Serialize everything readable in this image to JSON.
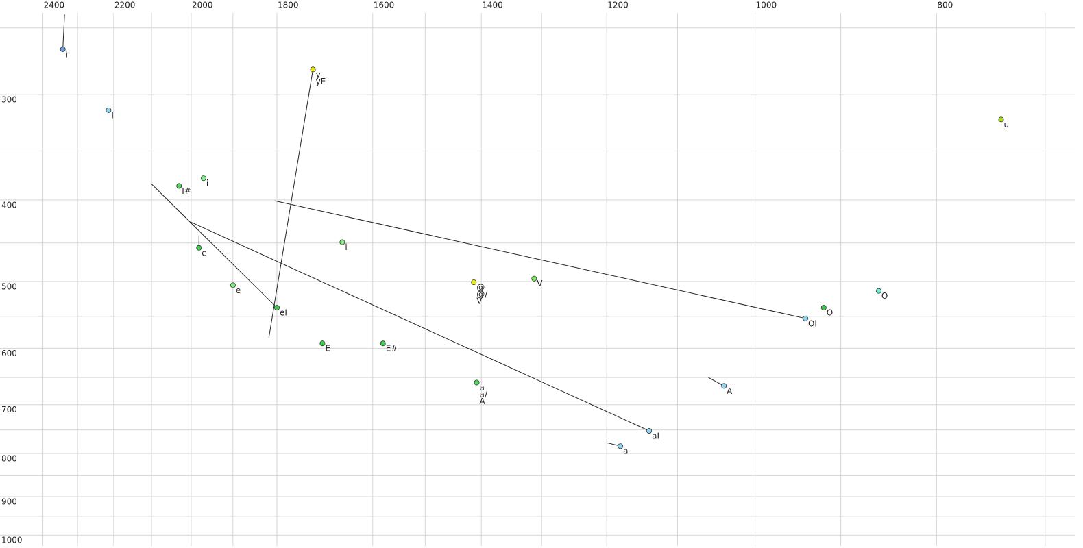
{
  "chart_data": {
    "type": "scatter",
    "log_x": true,
    "log_y": true,
    "x_reversed": true,
    "grid": true,
    "xlim": [
      2530,
      675
    ],
    "ylim": [
      240,
      1030
    ],
    "xticks": [
      2400,
      2200,
      2000,
      1800,
      1600,
      1400,
      1200,
      1000,
      800
    ],
    "xminor": [
      2300,
      2100,
      1900,
      1500,
      1300,
      1100,
      900,
      700
    ],
    "yticks": [
      300,
      400,
      500,
      600,
      700,
      800,
      900,
      1000
    ],
    "yminor": [
      250,
      350,
      450,
      550,
      650,
      750,
      850,
      950
    ],
    "points": [
      {
        "x": 2342,
        "y": 265,
        "color": "#6f9fe6",
        "labels": [
          "i"
        ],
        "label_color": "#222",
        "from": [
          2337,
          241
        ]
      },
      {
        "x": 2214,
        "y": 313,
        "color": "#8fd3f3",
        "labels": [
          "I"
        ],
        "label_color": "#222"
      },
      {
        "x": 1722,
        "y": 280,
        "color": "#eeee10",
        "labels": [
          "y",
          "yE"
        ],
        "label_color": "#222",
        "from": [
          1818,
          583
        ]
      },
      {
        "x": 739,
        "y": 321,
        "color": "#a6e020",
        "labels": [
          "u"
        ],
        "label_color": "#222"
      },
      {
        "x": 2030,
        "y": 385,
        "color": "#50d860",
        "labels": [
          "I#"
        ],
        "label_color": "#222"
      },
      {
        "x": 1970,
        "y": 377,
        "color": "#80ee90",
        "labels": [
          "i"
        ],
        "label_color": "#8a9a8a"
      },
      {
        "x": 1981,
        "y": 456,
        "color": "#40cc50",
        "labels": [
          "e"
        ],
        "label_color": "#222",
        "from": [
          1981,
          441
        ]
      },
      {
        "x": 1900,
        "y": 505,
        "color": "#80ee80",
        "labels": [
          "e"
        ],
        "label_color": "#7a8aa0"
      },
      {
        "x": 1800,
        "y": 537,
        "color": "#40cc50",
        "labels": [
          "eI"
        ],
        "label_color": "#222",
        "from": [
          2100,
          383
        ]
      },
      {
        "x": 1661,
        "y": 449,
        "color": "#80ee80",
        "labels": [
          "i"
        ],
        "label_color": "#8a9a8a"
      },
      {
        "x": 1702,
        "y": 592,
        "color": "#40cc50",
        "labels": [
          "E"
        ],
        "label_color": "#222"
      },
      {
        "x": 1580,
        "y": 592,
        "color": "#40cc50",
        "labels": [
          "E#"
        ],
        "label_color": "#222"
      },
      {
        "x": 1413,
        "y": 501,
        "color": "#eeee10",
        "labels": [
          "@",
          "@/",
          "V"
        ],
        "label_color": "#222"
      },
      {
        "x": 1312,
        "y": 496,
        "color": "#80ee60",
        "labels": [
          "V"
        ],
        "label_color": "#8a9a8a"
      },
      {
        "x": 1408,
        "y": 659,
        "color": "#50d860",
        "labels": [
          "a",
          "a/",
          "A"
        ],
        "label_color": "#222"
      },
      {
        "x": 1139,
        "y": 752,
        "color": "#8fd3f3",
        "labels": [
          "aI"
        ],
        "label_color": "#222",
        "from": [
          2001,
          425
        ]
      },
      {
        "x": 1180,
        "y": 784,
        "color": "#8fd3f3",
        "labels": [
          "a"
        ],
        "label_color": "#222",
        "from": [
          1199,
          777
        ]
      },
      {
        "x": 1039,
        "y": 665,
        "color": "#8fd3f3",
        "labels": [
          "A"
        ],
        "label_color": "#222",
        "from": [
          1059,
          650
        ]
      },
      {
        "x": 940,
        "y": 553,
        "color": "#8fd3f3",
        "labels": [
          "OI"
        ],
        "label_color": "#222",
        "from": [
          1805,
          401
        ]
      },
      {
        "x": 919,
        "y": 537,
        "color": "#40cc50",
        "labels": [
          "O"
        ],
        "label_color": "#222"
      },
      {
        "x": 859,
        "y": 513,
        "color": "#70f0d0",
        "labels": [
          "O"
        ],
        "label_color": "#8a9aa0"
      }
    ]
  }
}
